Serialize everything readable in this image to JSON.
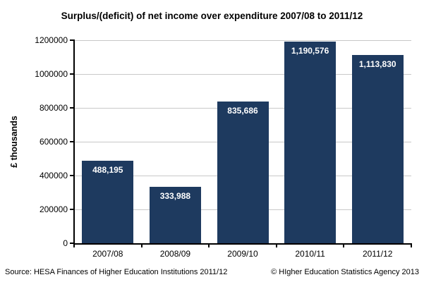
{
  "footer": {
    "source": "Source: HESA Finances of Higher Education Institutions 2011/12",
    "copyright": "© HIgher Education Statistics Agency 2013"
  },
  "chart_data": {
    "type": "bar",
    "title": "Surplus/(deficit) of net income over expenditure 2007/08 to 2011/12",
    "categories": [
      "2007/08",
      "2008/09",
      "2009/10",
      "2010/11",
      "2011/12"
    ],
    "values": [
      488195,
      333988,
      835686,
      1190576,
      1113830
    ],
    "bar_labels": [
      "488,195",
      "333,988",
      "835,686",
      "1,190,576",
      "1,113,830"
    ],
    "xlabel": "",
    "ylabel": "£ thousands",
    "ylim": [
      0,
      1200000
    ],
    "ytick_step": 200000,
    "ytick_labels": [
      "0",
      "200000",
      "400000",
      "600000",
      "800000",
      "1000000",
      "1200000"
    ],
    "grid": true,
    "legend_position": "none",
    "colors": {
      "bar": "#1e3a5f",
      "gridline": "#c8c8c8",
      "axis": "#000000",
      "bar_label": "#ffffff",
      "background": "#ffffff"
    }
  }
}
